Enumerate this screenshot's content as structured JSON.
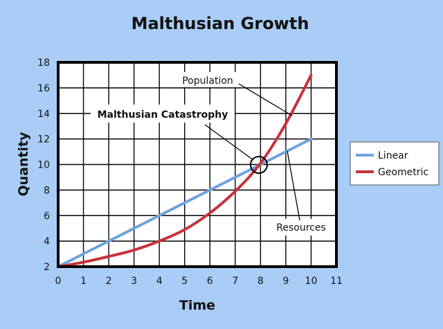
{
  "chart_data": {
    "type": "line",
    "title": "Malthusian Growth",
    "xlabel": "Time",
    "ylabel": "Quantity",
    "xlim": [
      0,
      11
    ],
    "ylim": [
      2,
      18
    ],
    "xticks": [
      0,
      1,
      2,
      3,
      4,
      5,
      6,
      7,
      8,
      9,
      10,
      11
    ],
    "yticks": [
      2,
      4,
      6,
      8,
      10,
      12,
      14,
      16,
      18
    ],
    "grid": true,
    "legend_position": "right",
    "series": [
      {
        "name": "Linear",
        "color": "#6fa3dd",
        "x": [
          0,
          1,
          2,
          3,
          4,
          5,
          6,
          7,
          8,
          9,
          10
        ],
        "values": [
          2,
          3,
          4,
          5,
          6,
          7,
          8,
          9,
          10,
          11,
          12
        ]
      },
      {
        "name": "Geometric",
        "color": "#c8313a",
        "x": [
          0,
          1,
          2,
          3,
          4,
          5,
          6,
          7,
          8,
          9,
          10
        ],
        "values": [
          2,
          2.35,
          2.8,
          3.3,
          4.0,
          4.9,
          6.2,
          7.9,
          10.1,
          13.2,
          17
        ]
      }
    ],
    "annotations": [
      {
        "text": "Population",
        "bold": false
      },
      {
        "text": "Malthusian Catastrophy",
        "bold": true
      },
      {
        "text": "Resources",
        "bold": false
      }
    ]
  }
}
